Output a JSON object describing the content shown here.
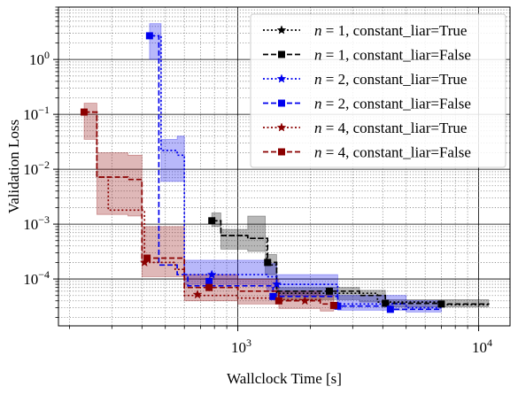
{
  "chart_data": {
    "type": "line",
    "title": "",
    "xlabel": "Wallclock Time [s]",
    "ylabel": "Validation Loss",
    "x_scale": "log",
    "y_scale": "log",
    "xlim": [
      180,
      13500
    ],
    "ylim": [
      1.4e-05,
      9
    ],
    "x_ticks": [
      {
        "value": 1000,
        "base": "10",
        "exp": "3"
      },
      {
        "value": 10000,
        "base": "10",
        "exp": "4"
      }
    ],
    "y_ticks": [
      {
        "value": 0.0001,
        "base": "10",
        "exp": "−4"
      },
      {
        "value": 0.001,
        "base": "10",
        "exp": "−3"
      },
      {
        "value": 0.01,
        "base": "10",
        "exp": "−2"
      },
      {
        "value": 0.1,
        "base": "10",
        "exp": "−1"
      },
      {
        "value": 1,
        "base": "10",
        "exp": "0"
      }
    ],
    "grid": "major solid black, minor dotted gray",
    "legend_position": "top-right",
    "series": [
      {
        "label_var": "n",
        "label_rest": " = 1, constant_liar=True",
        "color": "#000000",
        "dash": "dotted",
        "marker": "star",
        "points": [
          [
            780,
            0.00115
          ],
          [
            850,
            0.00062
          ],
          [
            1100,
            0.00055
          ],
          [
            1320,
            0.00018
          ],
          [
            1450,
            5.5e-05
          ],
          [
            2400,
            5.5e-05
          ],
          [
            3800,
            3.8e-05
          ],
          [
            7000,
            3.4e-05
          ],
          [
            11000,
            3.3e-05
          ]
        ],
        "band": null,
        "markers": []
      },
      {
        "label_var": "n",
        "label_rest": " = 1, constant_liar=False",
        "color": "#000000",
        "dash": "dashed",
        "marker": "square",
        "points": [
          [
            780,
            0.00115
          ],
          [
            850,
            0.00062
          ],
          [
            1100,
            0.00055
          ],
          [
            1330,
            0.0002
          ],
          [
            1450,
            6e-05
          ],
          [
            2400,
            6e-05
          ],
          [
            3200,
            5e-05
          ],
          [
            4100,
            3.6e-05
          ],
          [
            7000,
            3.5e-05
          ],
          [
            11000,
            3.4e-05
          ]
        ],
        "band": {
          "x": [
            780,
            850,
            1100,
            1300,
            1450,
            2400,
            3200,
            4100,
            7000,
            11000
          ],
          "lo": [
            0.0009,
            0.00035,
            0.00032,
            0.00012,
            4.2e-05,
            4.2e-05,
            3.8e-05,
            3.1e-05,
            3.1e-05,
            3.1e-05
          ],
          "hi": [
            0.0016,
            0.0008,
            0.0014,
            0.00028,
            7e-05,
            7e-05,
            6.2e-05,
            4.2e-05,
            4.2e-05,
            3.8e-05
          ]
        },
        "markers": [
          [
            780,
            0.00115
          ],
          [
            1330,
            0.0002
          ],
          [
            2400,
            6e-05
          ],
          [
            4100,
            3.6e-05
          ],
          [
            7000,
            3.5e-05
          ]
        ]
      },
      {
        "label_var": "n",
        "label_rest": " = 2, constant_liar=True",
        "color": "#0000ee",
        "dash": "dotted",
        "marker": "star",
        "points": [
          [
            430,
            2.7
          ],
          [
            480,
            0.022
          ],
          [
            560,
            0.018
          ],
          [
            600,
            0.00012
          ],
          [
            780,
            0.00012
          ],
          [
            1320,
            0.00011
          ],
          [
            1450,
            8e-05
          ],
          [
            2600,
            3.5e-05
          ],
          [
            5000,
            3e-05
          ],
          [
            7000,
            2.9e-05
          ]
        ],
        "band": {
          "x": [
            430,
            480,
            560,
            600,
            780,
            1320,
            1450,
            2600,
            5000,
            7000
          ],
          "lo": [
            1.0,
            0.006,
            0.006,
            8e-05,
            8e-05,
            6e-05,
            5e-05,
            2.7e-05,
            2.5e-05,
            2.5e-05
          ],
          "hi": [
            4.5,
            0.035,
            0.04,
            0.00022,
            0.00022,
            0.00019,
            0.00012,
            5e-05,
            4e-05,
            3.5e-05
          ]
        },
        "markers": [
          [
            780,
            0.00012
          ],
          [
            1450,
            8e-05
          ]
        ]
      },
      {
        "label_var": "n",
        "label_rest": " = 2, constant_liar=False",
        "color": "#0000ee",
        "dash": "dashed",
        "marker": "square",
        "points": [
          [
            430,
            2.7
          ],
          [
            470,
            0.00018
          ],
          [
            560,
            0.00012
          ],
          [
            620,
            7.5e-05
          ],
          [
            1000,
            7.5e-05
          ],
          [
            1400,
            4.8e-05
          ],
          [
            2600,
            3.2e-05
          ],
          [
            4300,
            2.8e-05
          ],
          [
            7000,
            2.8e-05
          ]
        ],
        "band": null,
        "markers": [
          [
            430,
            2.7
          ],
          [
            760,
            9e-05
          ],
          [
            1400,
            4.8e-05
          ],
          [
            2600,
            3.2e-05
          ],
          [
            4300,
            2.8e-05
          ]
        ]
      },
      {
        "label_var": "n",
        "label_rest": " = 4, constant_liar=True",
        "color": "#8b0000",
        "dash": "dotted",
        "marker": "star",
        "points": [
          [
            230,
            0.11
          ],
          [
            260,
            0.0072
          ],
          [
            290,
            0.0018
          ],
          [
            380,
            0.0018
          ],
          [
            410,
            0.0002
          ],
          [
            550,
            0.00015
          ],
          [
            600,
            5e-05
          ],
          [
            1000,
            4.5e-05
          ],
          [
            1500,
            4.2e-05
          ],
          [
            2200,
            4e-05
          ]
        ],
        "band": null,
        "markers": [
          [
            410,
            0.0002
          ],
          [
            680,
            5.2e-05
          ],
          [
            1900,
            4e-05
          ]
        ]
      },
      {
        "label_var": "n",
        "label_rest": " = 4, constant_liar=False",
        "color": "#8b0000",
        "dash": "dashed",
        "marker": "square",
        "points": [
          [
            230,
            0.11
          ],
          [
            260,
            0.0072
          ],
          [
            350,
            0.0065
          ],
          [
            400,
            0.00024
          ],
          [
            600,
            7e-05
          ],
          [
            1000,
            6e-05
          ],
          [
            1480,
            4e-05
          ],
          [
            2200,
            3.5e-05
          ],
          [
            2500,
            3.3e-05
          ]
        ],
        "band": {
          "x": [
            230,
            260,
            350,
            400,
            600,
            1000,
            1480,
            2200,
            2500
          ],
          "lo": [
            0.035,
            0.0015,
            0.0014,
            0.00011,
            4e-05,
            3.5e-05,
            2.9e-05,
            2.6e-05,
            2.6e-05
          ],
          "hi": [
            0.16,
            0.02,
            0.018,
            0.0009,
            0.00012,
            0.0001,
            6e-05,
            5e-05,
            5e-05
          ]
        },
        "markers": [
          [
            230,
            0.11
          ],
          [
            420,
            0.00024
          ],
          [
            760,
            7e-05
          ],
          [
            1480,
            4e-05
          ],
          [
            2500,
            3.3e-05
          ]
        ]
      }
    ]
  }
}
